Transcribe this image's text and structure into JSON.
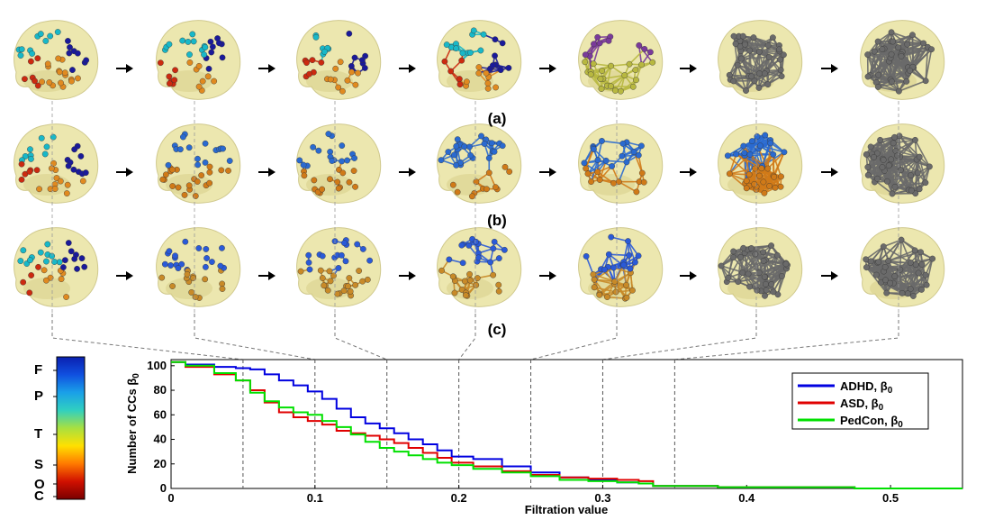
{
  "figure": {
    "row_labels": [
      "(a)",
      "(b)",
      "(c)"
    ],
    "panels_per_row": 7,
    "colorbar": {
      "labels": [
        "F",
        "P",
        "T",
        "S",
        "O",
        "C"
      ],
      "stops": [
        "#7a0000",
        "#d01000",
        "#ff7a00",
        "#ffe000",
        "#a8e040",
        "#30d0c0",
        "#1aa0e8",
        "#1050e0",
        "#0a20b0"
      ]
    },
    "row_colors": {
      "a": [
        "#1a1a9a",
        "#18b8c8",
        "#cc2a10",
        "#e08a20",
        "#7a3a9a",
        "#6a6a6a"
      ],
      "b": [
        "#2a6ad0",
        "#d07a18",
        "#6a6a6a"
      ],
      "c": [
        "#2a5ad8",
        "#c88a28",
        "#6a6a6a"
      ]
    }
  },
  "chart_data": {
    "type": "line",
    "xlabel": "Filtration value",
    "ylabel": "Number of CCs β",
    "ylabel_sub": "0",
    "xlim": [
      0,
      0.55
    ],
    "ylim": [
      0,
      105
    ],
    "xticks": [
      0,
      0.1,
      0.2,
      0.3,
      0.4,
      0.5
    ],
    "xtick_labels": [
      "0",
      "0.1",
      "0.2",
      "0.3",
      "0.4",
      "0.5"
    ],
    "yticks": [
      0,
      20,
      40,
      60,
      80,
      100
    ],
    "ytick_labels": [
      "0",
      "20",
      "40",
      "60",
      "80",
      "100"
    ],
    "vlines": [
      0.05,
      0.1,
      0.15,
      0.2,
      0.25,
      0.3,
      0.35
    ],
    "legend_position": "top-right",
    "series": [
      {
        "name": "ADHD, β",
        "sub": "0",
        "color": "#0000e0",
        "x": [
          0,
          0.02,
          0.04,
          0.05,
          0.06,
          0.07,
          0.08,
          0.09,
          0.1,
          0.11,
          0.12,
          0.13,
          0.14,
          0.15,
          0.16,
          0.17,
          0.18,
          0.19,
          0.2,
          0.22,
          0.24,
          0.26,
          0.28,
          0.3,
          0.32,
          0.33,
          0.34,
          0.36,
          0.4,
          0.45,
          0.5,
          0.55
        ],
        "y": [
          103,
          101,
          99,
          98,
          97,
          93,
          88,
          84,
          79,
          73,
          65,
          58,
          53,
          49,
          45,
          40,
          36,
          31,
          26,
          24,
          18,
          13,
          9,
          7,
          5,
          4,
          2,
          2,
          1,
          1,
          0,
          0
        ]
      },
      {
        "name": "ASD, β",
        "sub": "0",
        "color": "#e00000",
        "x": [
          0,
          0.02,
          0.04,
          0.05,
          0.06,
          0.07,
          0.08,
          0.09,
          0.1,
          0.11,
          0.12,
          0.13,
          0.14,
          0.15,
          0.16,
          0.17,
          0.18,
          0.19,
          0.2,
          0.22,
          0.24,
          0.26,
          0.28,
          0.3,
          0.32,
          0.33,
          0.34,
          0.36,
          0.4,
          0.45,
          0.5,
          0.55
        ],
        "y": [
          103,
          99,
          93,
          88,
          80,
          70,
          62,
          58,
          55,
          52,
          47,
          45,
          43,
          40,
          37,
          33,
          29,
          25,
          21,
          18,
          14,
          11,
          9,
          8,
          7,
          6,
          2,
          2,
          1,
          1,
          0,
          0
        ]
      },
      {
        "name": "PedCon, β",
        "sub": "0",
        "color": "#00e000",
        "x": [
          0,
          0.02,
          0.04,
          0.05,
          0.06,
          0.07,
          0.08,
          0.09,
          0.1,
          0.11,
          0.12,
          0.13,
          0.14,
          0.15,
          0.16,
          0.17,
          0.18,
          0.19,
          0.2,
          0.22,
          0.24,
          0.26,
          0.28,
          0.3,
          0.32,
          0.33,
          0.34,
          0.36,
          0.4,
          0.45,
          0.5,
          0.55
        ],
        "y": [
          103,
          100,
          94,
          88,
          78,
          71,
          66,
          62,
          60,
          55,
          50,
          44,
          38,
          33,
          30,
          27,
          24,
          21,
          19,
          16,
          13,
          10,
          7,
          6,
          5,
          4,
          2,
          2,
          1,
          1,
          0,
          0
        ]
      }
    ]
  }
}
